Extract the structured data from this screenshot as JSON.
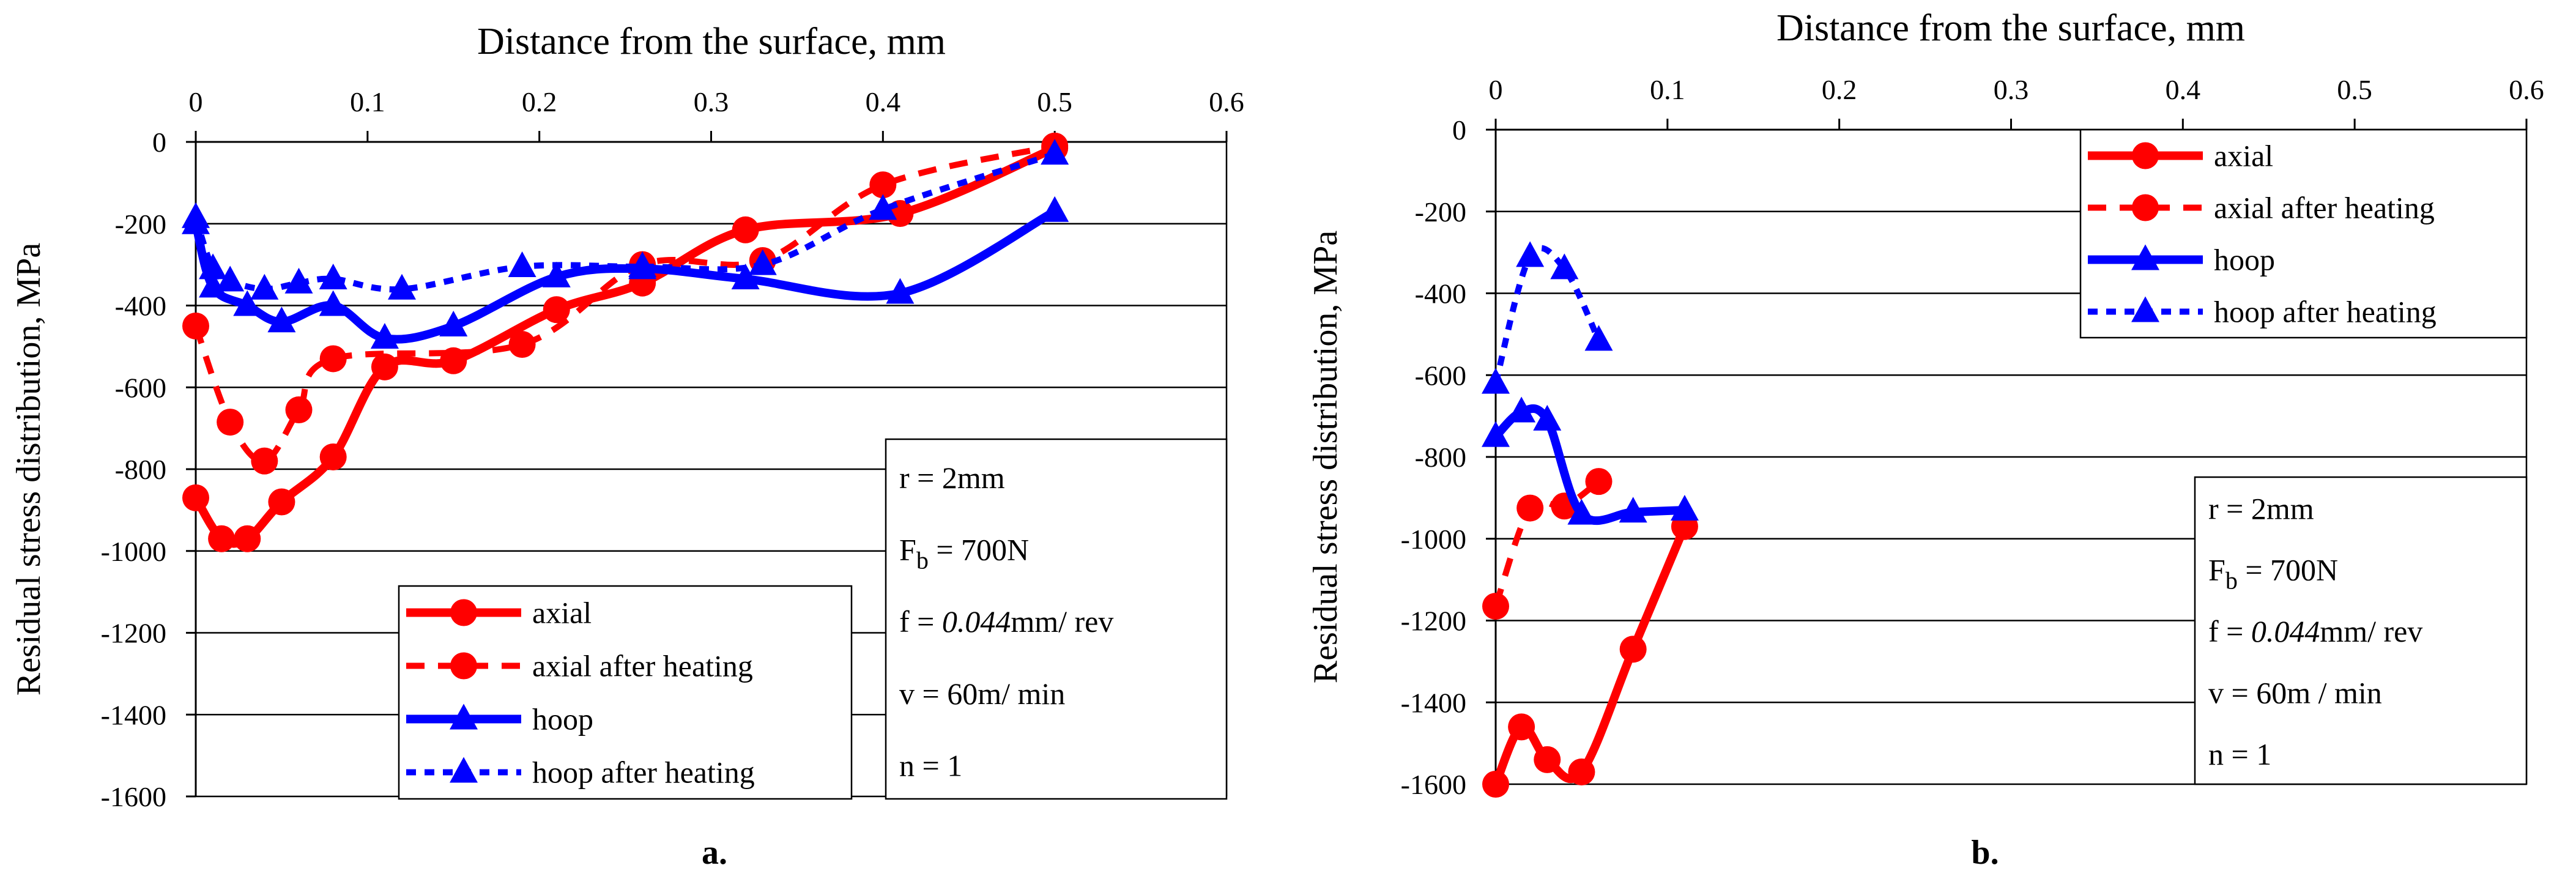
{
  "colors": {
    "axial": "#ff0000",
    "hoop": "#0000ff",
    "grid": "#000000",
    "box": "#000000"
  },
  "chart_data": [
    {
      "id": "a",
      "type": "line",
      "panel_label": "a.",
      "title": "Distance from the surface, mm",
      "xlabel": "Distance from the surface, mm",
      "ylabel": "Residual stress distribution, MPa",
      "xlim": [
        0,
        0.6
      ],
      "ylim": [
        -1600,
        0
      ],
      "x_ticks": [
        0,
        0.1,
        0.2,
        0.3,
        0.4,
        0.5,
        0.6
      ],
      "x_tick_labels": [
        "0",
        "0.1",
        "0.2",
        "0.3",
        "0.4",
        "0.5",
        "0.6"
      ],
      "y_ticks": [
        0,
        -200,
        -400,
        -600,
        -800,
        -1000,
        -1200,
        -1400,
        -1600
      ],
      "y_tick_labels": [
        "0",
        "-200",
        "-400",
        "-600",
        "-800",
        "-1000",
        "-1200",
        "-1400",
        "-1600"
      ],
      "grid": "horizontal",
      "legend_position": "bottom-center",
      "params": [
        "r = 2mm",
        "F",
        "b",
        " = 700N",
        " f = ",
        "0.044",
        "mm/ rev",
        "v = 60m/ min",
        "n = 1"
      ],
      "series": [
        {
          "name": "axial",
          "color_key": "axial",
          "style": "solid",
          "marker": "circle",
          "x": [
            0,
            0.015,
            0.03,
            0.05,
            0.08,
            0.11,
            0.15,
            0.21,
            0.26,
            0.32,
            0.41,
            0.5
          ],
          "y": [
            -870,
            -970,
            -970,
            -880,
            -770,
            -550,
            -535,
            -410,
            -345,
            -215,
            -175,
            -15
          ]
        },
        {
          "name": "axial after heating",
          "color_key": "axial",
          "style": "dashed",
          "marker": "circle",
          "x": [
            0,
            0.02,
            0.04,
            0.06,
            0.08,
            0.19,
            0.26,
            0.33,
            0.4,
            0.5
          ],
          "y": [
            -450,
            -685,
            -780,
            -655,
            -530,
            -495,
            -300,
            -290,
            -105,
            -10
          ]
        },
        {
          "name": "hoop",
          "color_key": "hoop",
          "style": "solid",
          "marker": "triangle",
          "x": [
            0,
            0.01,
            0.03,
            0.05,
            0.08,
            0.11,
            0.15,
            0.21,
            0.26,
            0.32,
            0.41,
            0.5
          ],
          "y": [
            -200,
            -355,
            -400,
            -440,
            -400,
            -480,
            -450,
            -330,
            -310,
            -335,
            -370,
            -170
          ]
        },
        {
          "name": "hoop after heating",
          "color_key": "hoop",
          "style": "dotted",
          "marker": "triangle",
          "x": [
            0,
            0.01,
            0.02,
            0.04,
            0.06,
            0.08,
            0.12,
            0.19,
            0.26,
            0.33,
            0.4,
            0.5
          ],
          "y": [
            -185,
            -310,
            -340,
            -360,
            -345,
            -335,
            -360,
            -305,
            -305,
            -300,
            -165,
            -30
          ]
        }
      ]
    },
    {
      "id": "b",
      "type": "line",
      "panel_label": "b.",
      "title": "Distance from the surface, mm",
      "xlabel": "Distance from the surface, mm",
      "ylabel": "Residual stress distribution, MPa",
      "xlim": [
        0,
        0.6
      ],
      "ylim": [
        -1600,
        0
      ],
      "x_ticks": [
        0,
        0.1,
        0.2,
        0.3,
        0.4,
        0.5,
        0.6
      ],
      "x_tick_labels": [
        "0",
        "0.1",
        "0.2",
        "0.3",
        "0.4",
        "0.5",
        "0.6"
      ],
      "y_ticks": [
        0,
        -200,
        -400,
        -600,
        -800,
        -1000,
        -1200,
        -1400,
        -1600
      ],
      "y_tick_labels": [
        "0",
        "-200",
        "-400",
        "-600",
        "-800",
        "-1000",
        "-1200",
        "-1400",
        "-1600"
      ],
      "grid": "horizontal",
      "legend_position": "top-right",
      "params": [
        "r = 2mm",
        "F",
        "b",
        " = 700N",
        " f = ",
        "0.044",
        "mm/ rev",
        "v = 60m / min",
        "n = 1"
      ],
      "series": [
        {
          "name": "axial",
          "color_key": "axial",
          "style": "solid",
          "marker": "circle",
          "x": [
            0,
            0.015,
            0.03,
            0.05,
            0.08,
            0.11
          ],
          "y": [
            -1600,
            -1460,
            -1540,
            -1570,
            -1270,
            -970
          ]
        },
        {
          "name": "axial after heating",
          "color_key": "axial",
          "style": "dashed",
          "marker": "circle",
          "x": [
            0,
            0.02,
            0.04,
            0.06
          ],
          "y": [
            -1165,
            -925,
            -920,
            -860
          ]
        },
        {
          "name": "hoop",
          "color_key": "hoop",
          "style": "solid",
          "marker": "triangle",
          "x": [
            0,
            0.015,
            0.03,
            0.05,
            0.08,
            0.11
          ],
          "y": [
            -750,
            -690,
            -710,
            -940,
            -935,
            -930
          ]
        },
        {
          "name": "hoop after heating",
          "color_key": "hoop",
          "style": "dotted",
          "marker": "triangle",
          "x": [
            0,
            0.02,
            0.04,
            0.06
          ],
          "y": [
            -620,
            -310,
            -340,
            -515
          ]
        }
      ]
    }
  ]
}
